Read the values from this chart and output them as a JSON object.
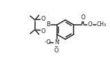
{
  "bg_color": "#ffffff",
  "line_color": "#222222",
  "line_width": 1.1,
  "font_size": 6.0,
  "figsize": [
    1.6,
    0.9
  ],
  "dpi": 100,
  "xlim": [
    0,
    160
  ],
  "ylim": [
    0,
    90
  ]
}
